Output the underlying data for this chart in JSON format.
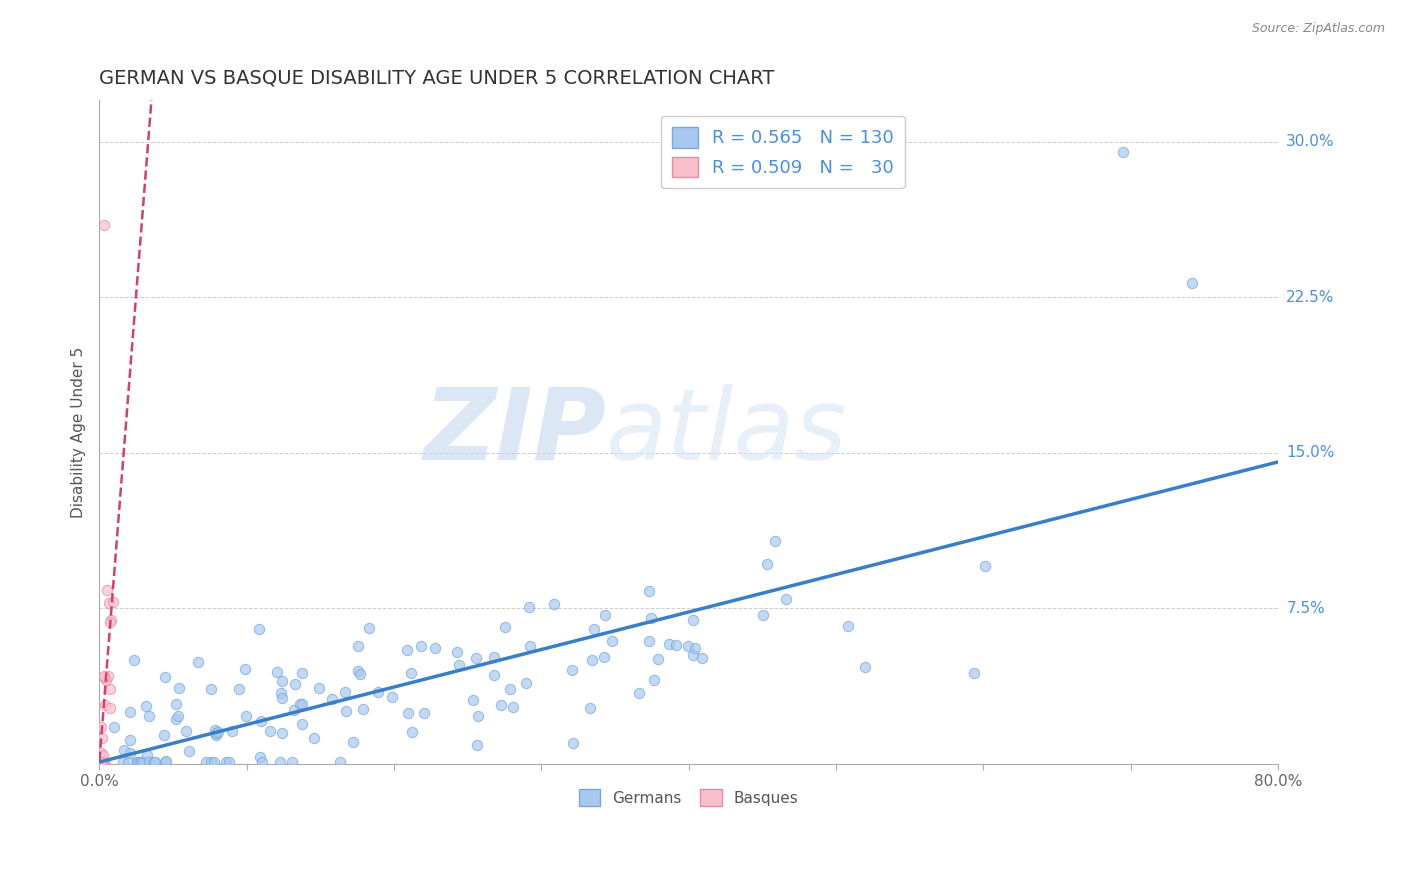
{
  "title": "GERMAN VS BASQUE DISABILITY AGE UNDER 5 CORRELATION CHART",
  "source": "Source: ZipAtlas.com",
  "ylabel": "Disability Age Under 5",
  "xlabel": "",
  "watermark_zip": "ZIP",
  "watermark_atlas": "atlas",
  "xlim": [
    0.0,
    0.8
  ],
  "ylim": [
    0.0,
    0.32
  ],
  "xtick_positions": [
    0.0,
    0.1,
    0.2,
    0.3,
    0.4,
    0.5,
    0.6,
    0.7,
    0.8
  ],
  "xtick_labels": [
    "0.0%",
    "",
    "",
    "",
    "",
    "",
    "",
    "",
    "80.0%"
  ],
  "ytick_positions": [
    0.0,
    0.075,
    0.15,
    0.225,
    0.3
  ],
  "ytick_labels_right": [
    "",
    "7.5%",
    "15.0%",
    "22.5%",
    "30.0%"
  ],
  "german_R": 0.565,
  "german_N": 130,
  "basque_R": 0.509,
  "basque_N": 30,
  "german_dot_color": "#a8c8f0",
  "german_dot_edge": "#7aaad4",
  "basque_dot_color": "#f7c0cc",
  "basque_dot_edge": "#e88ca0",
  "german_line_color": "#3a7ec8",
  "basque_line_color": "#d04070",
  "grid_color": "#cccccc",
  "background_color": "#ffffff",
  "title_color": "#333333",
  "title_fontsize": 14,
  "axis_label_fontsize": 11,
  "legend_fontsize": 13,
  "scatter_alpha": 0.7,
  "scatter_size": 55,
  "german_seed": 12,
  "basque_seed": 77,
  "german_line_intercept": 0.005,
  "german_line_slope": 0.135,
  "basque_line_intercept": -0.004,
  "basque_line_slope": 8.5
}
